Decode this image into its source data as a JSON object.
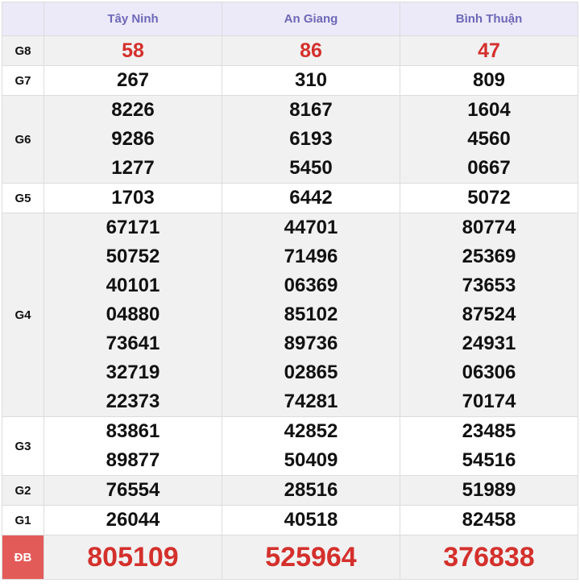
{
  "header": {
    "provinces": [
      "Tây Ninh",
      "An Giang",
      "Bình Thuận"
    ]
  },
  "colors": {
    "header_text": "#6d68b8",
    "header_bg": "#eceaf8",
    "accent_red": "#d4302c",
    "special_label_bg": "#e35b58"
  },
  "rows": [
    {
      "label": "G8",
      "values": [
        [
          "58"
        ],
        [
          "86"
        ],
        [
          "47"
        ]
      ]
    },
    {
      "label": "G7",
      "values": [
        [
          "267"
        ],
        [
          "310"
        ],
        [
          "809"
        ]
      ]
    },
    {
      "label": "G6",
      "values": [
        [
          "8226",
          "9286",
          "1277"
        ],
        [
          "8167",
          "6193",
          "5450"
        ],
        [
          "1604",
          "4560",
          "0667"
        ]
      ]
    },
    {
      "label": "G5",
      "values": [
        [
          "1703"
        ],
        [
          "6442"
        ],
        [
          "5072"
        ]
      ]
    },
    {
      "label": "G4",
      "values": [
        [
          "67171",
          "50752",
          "40101",
          "04880",
          "73641",
          "32719",
          "22373"
        ],
        [
          "44701",
          "71496",
          "06369",
          "85102",
          "89736",
          "02865",
          "74281"
        ],
        [
          "80774",
          "25369",
          "73653",
          "87524",
          "24931",
          "06306",
          "70174"
        ]
      ]
    },
    {
      "label": "G3",
      "values": [
        [
          "83861",
          "89877"
        ],
        [
          "42852",
          "50409"
        ],
        [
          "23485",
          "54516"
        ]
      ]
    },
    {
      "label": "G2",
      "values": [
        [
          "76554"
        ],
        [
          "28516"
        ],
        [
          "51989"
        ]
      ]
    },
    {
      "label": "G1",
      "values": [
        [
          "26044"
        ],
        [
          "40518"
        ],
        [
          "82458"
        ]
      ]
    },
    {
      "label": "ĐB",
      "values": [
        [
          "805109"
        ],
        [
          "525964"
        ],
        [
          "376838"
        ]
      ]
    }
  ]
}
